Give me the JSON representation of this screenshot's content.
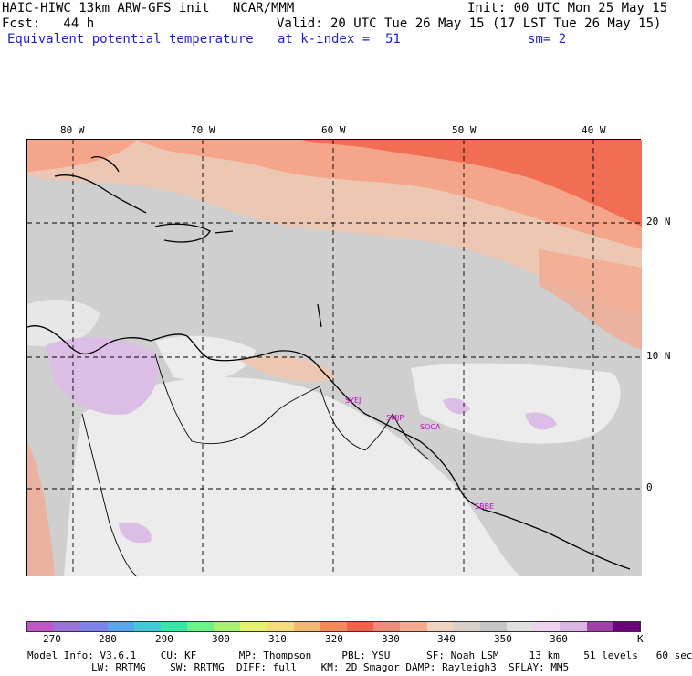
{
  "header": {
    "title": "HAIC-HIWC 13km ARW-GFS init   NCAR/MMM",
    "init": "Init: 00 UTC Mon 25 May 15",
    "fcst": "Fcst:   44 h",
    "valid": "Valid: 20 UTC Tue 26 May 15 (17 LST Tue 26 May 15)",
    "field": "Equivalent potential temperature",
    "level": "at k-index =  51",
    "smooth": "sm= 2"
  },
  "map": {
    "lon_labels": [
      "80 W",
      "70 W",
      "60 W",
      "50 W",
      "40 W"
    ],
    "lat_labels": [
      "20 N",
      "10 N",
      "0"
    ],
    "stations": [
      "SYEJ",
      "SMJP",
      "SOCA",
      "SBBE"
    ],
    "station_color": "#cc00cc",
    "colors": {
      "background_gray": "#cfcfcf",
      "light": "#ececec",
      "salmon": "#f5a58a",
      "peach": "#ecc8b4",
      "red": "#f0634a",
      "lavender": "#dcbde6"
    }
  },
  "colorbar": {
    "colors": [
      "#c455c8",
      "#9b73dc",
      "#7d82ec",
      "#5aa5f0",
      "#45c8d8",
      "#38e6a8",
      "#6ef08a",
      "#a8f070",
      "#e6f070",
      "#f5dc78",
      "#f5b870",
      "#f58a5a",
      "#f0634a",
      "#f08a7a",
      "#f5aa90",
      "#f0d2be",
      "#d8d0c8",
      "#c4c4c4",
      "#e0e0e0",
      "#f0d2f0",
      "#dcb4e6",
      "#a040a8",
      "#6c007c"
    ],
    "labels": [
      "270",
      "280",
      "290",
      "300",
      "310",
      "320",
      "330",
      "340",
      "350",
      "360",
      "K"
    ]
  },
  "footer": {
    "line1": "Model Info: V3.6.1    CU: KF       MP: Thompson     PBL: YSU      SF: Noah LSM     13 km    51 levels   60 sec",
    "line2": "LW: RRTMG    SW: RRTMG  DIFF: full    KM: 2D Smagor DAMP: Rayleigh3  SFLAY: MM5"
  }
}
